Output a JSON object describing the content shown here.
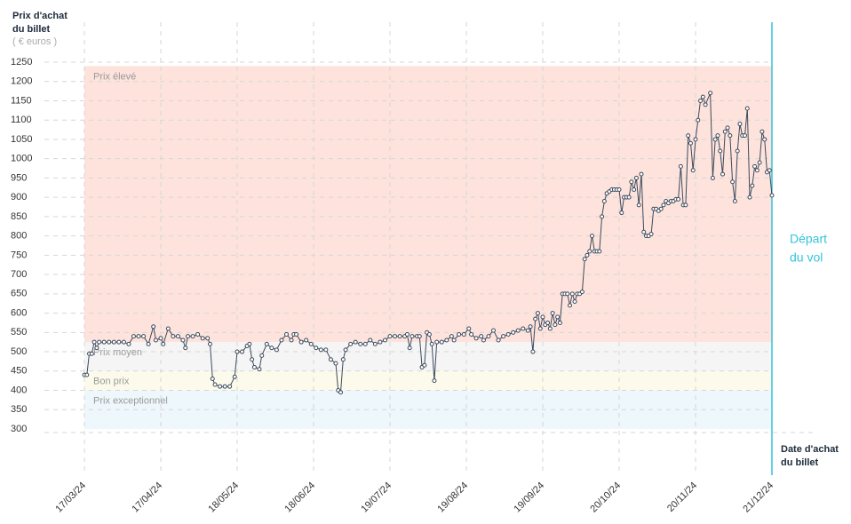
{
  "chart_data": {
    "type": "line",
    "y_title": [
      "Prix d'achat",
      "du billet"
    ],
    "y_unit": "( € euros )",
    "x_title": [
      "Date d'achat",
      "du billet"
    ],
    "annotation": [
      "Départ",
      "du vol"
    ],
    "color": "#3d4a5c",
    "departure_color": "#35c4dc",
    "grid": true,
    "bands": [
      {
        "label": "Prix élevé",
        "range": [
          525,
          1240
        ],
        "color": "#fde3dc"
      },
      {
        "label": "Prix moyen",
        "range": [
          450,
          525
        ],
        "color": "#f5f5f5"
      },
      {
        "label": "Bon prix",
        "range": [
          400,
          450
        ],
        "color": "#fcfbeb"
      },
      {
        "label": "Prix exceptionnel",
        "range": [
          300,
          400
        ],
        "color": "#eef7fb"
      }
    ],
    "xlim": [
      0,
      279
    ],
    "xticks": [
      {
        "value": 0,
        "label": "17/03/24"
      },
      {
        "value": 31,
        "label": "17/04/24"
      },
      {
        "value": 62,
        "label": "18/05/24"
      },
      {
        "value": 93,
        "label": "18/06/24"
      },
      {
        "value": 124,
        "label": "19/07/24"
      },
      {
        "value": 155,
        "label": "19/08/24"
      },
      {
        "value": 186,
        "label": "19/09/24"
      },
      {
        "value": 217,
        "label": "20/10/24"
      },
      {
        "value": 248,
        "label": "20/11/24"
      },
      {
        "value": 279,
        "label": "21/12/24"
      }
    ],
    "ylim": [
      300,
      1250
    ],
    "yticks": [
      300,
      350,
      400,
      450,
      500,
      550,
      600,
      650,
      700,
      750,
      800,
      850,
      900,
      950,
      1000,
      1050,
      1100,
      1150,
      1200,
      1250
    ],
    "x": [
      0,
      1,
      2,
      3,
      4,
      5,
      6,
      8,
      10,
      12,
      14,
      16,
      18,
      20,
      22,
      24,
      26,
      28,
      29,
      31,
      32,
      34,
      36,
      38,
      40,
      41,
      42,
      44,
      46,
      48,
      50,
      51,
      52,
      53,
      55,
      57,
      59,
      61,
      62,
      64,
      66,
      67,
      68,
      69,
      71,
      72,
      74,
      76,
      78,
      80,
      82,
      84,
      85,
      86,
      88,
      90,
      92,
      94,
      96,
      98,
      100,
      102,
      103,
      104,
      105,
      106,
      108,
      110,
      112,
      114,
      116,
      118,
      120,
      122,
      124,
      126,
      128,
      130,
      131,
      132,
      133,
      135,
      136,
      137,
      138,
      139,
      140,
      141,
      142,
      143,
      145,
      147,
      149,
      150,
      152,
      154,
      156,
      157,
      159,
      161,
      162,
      164,
      166,
      168,
      170,
      172,
      174,
      176,
      178,
      180,
      181,
      182,
      183,
      184,
      185,
      186,
      187,
      188,
      189,
      190,
      191,
      192,
      193,
      194,
      195,
      196,
      197,
      198,
      199,
      200,
      201,
      202,
      203,
      204,
      205,
      206,
      207,
      208,
      209,
      210,
      211,
      212,
      213,
      214,
      215,
      216,
      217,
      218,
      219,
      220,
      221,
      222,
      223,
      224,
      225,
      226,
      227,
      228,
      229,
      230,
      231,
      232,
      233,
      234,
      235,
      236,
      237,
      238,
      239,
      240,
      241,
      242,
      243,
      244,
      245,
      246,
      247,
      248,
      249,
      250,
      251,
      252,
      254,
      255,
      256,
      257,
      258,
      259,
      260,
      261,
      262,
      263,
      264,
      265,
      266,
      267,
      268,
      269,
      270,
      271,
      272,
      273,
      274,
      275,
      276,
      277,
      278,
      279
    ],
    "values": [
      440,
      440,
      495,
      495,
      525,
      510,
      525,
      525,
      525,
      525,
      525,
      525,
      520,
      540,
      540,
      540,
      520,
      565,
      530,
      535,
      520,
      560,
      540,
      540,
      530,
      510,
      540,
      540,
      545,
      535,
      535,
      520,
      430,
      415,
      410,
      410,
      410,
      435,
      500,
      500,
      515,
      520,
      480,
      460,
      455,
      490,
      520,
      510,
      505,
      530,
      545,
      530,
      545,
      545,
      525,
      530,
      520,
      510,
      505,
      505,
      480,
      470,
      400,
      395,
      480,
      505,
      520,
      525,
      520,
      520,
      530,
      520,
      525,
      530,
      540,
      540,
      540,
      540,
      545,
      510,
      540,
      540,
      540,
      460,
      465,
      550,
      545,
      520,
      425,
      525,
      525,
      530,
      540,
      530,
      545,
      545,
      560,
      545,
      535,
      540,
      530,
      540,
      555,
      530,
      540,
      545,
      550,
      555,
      560,
      555,
      565,
      500,
      585,
      600,
      560,
      590,
      570,
      575,
      560,
      600,
      570,
      590,
      575,
      650,
      650,
      650,
      620,
      650,
      630,
      650,
      650,
      655,
      740,
      750,
      760,
      800,
      760,
      760,
      760,
      850,
      890,
      910,
      915,
      920,
      920,
      920,
      920,
      860,
      900,
      900,
      900,
      940,
      920,
      950,
      880,
      960,
      810,
      800,
      800,
      805,
      870,
      870,
      865,
      870,
      880,
      890,
      885,
      890,
      890,
      895,
      895,
      980,
      880,
      880,
      1060,
      1040,
      970,
      1050,
      1100,
      1150,
      1160,
      1140,
      1170,
      950,
      1050,
      1060,
      1020,
      960,
      1070,
      1080,
      1060,
      940,
      890,
      1020,
      1090,
      1060,
      1060,
      1130,
      900,
      930,
      980,
      970,
      990,
      1070,
      1050,
      965,
      970,
      905
    ]
  }
}
